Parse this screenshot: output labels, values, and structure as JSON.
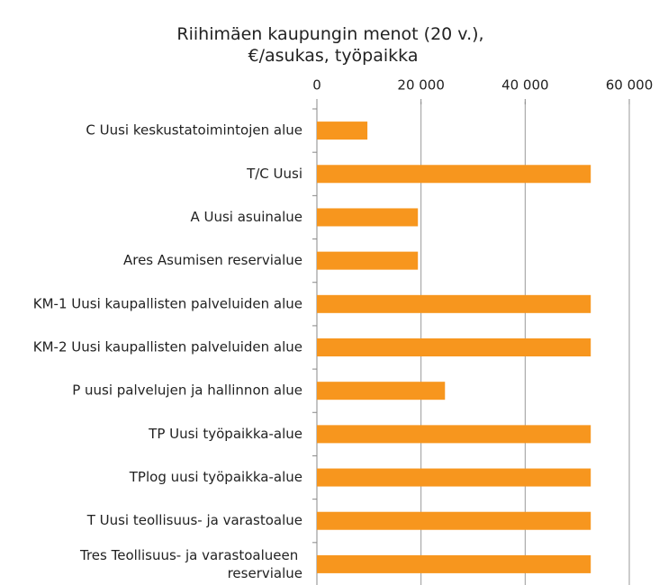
{
  "chart_data": {
    "type": "bar",
    "orientation": "horizontal",
    "title": "Riihimäen kaupungin menot (20 v.), €/asukas, työpaikka",
    "categories": [
      "C Uusi keskustatoimintojen alue",
      "T/C Uusi",
      "A Uusi asuinalue",
      "Ares Asumisen reservialue",
      "KM-1 Uusi kaupallisten palveluiden alue",
      "KM-2 Uusi kaupallisten palveluiden alue",
      "P uusi palvelujen ja hallinnon alue",
      "TP Uusi työpaikka-alue",
      "TPlog uusi työpaikka-alue",
      "T Uusi teollisuus- ja varastoalue",
      "Tres Teollisuus- ja varastoalueen reservialue"
    ],
    "values": [
      9700,
      52600,
      19400,
      19400,
      52600,
      52600,
      24600,
      52600,
      52600,
      52600,
      52600
    ],
    "color": "#f7961e",
    "xlim": [
      0,
      60000
    ],
    "xticks": [
      0,
      {
        "value": 20000,
        "label": "20 000"
      },
      {
        "value": 40000,
        "label": "40 000"
      },
      {
        "value": 60000,
        "label": "60 000"
      }
    ],
    "grid": true
  }
}
